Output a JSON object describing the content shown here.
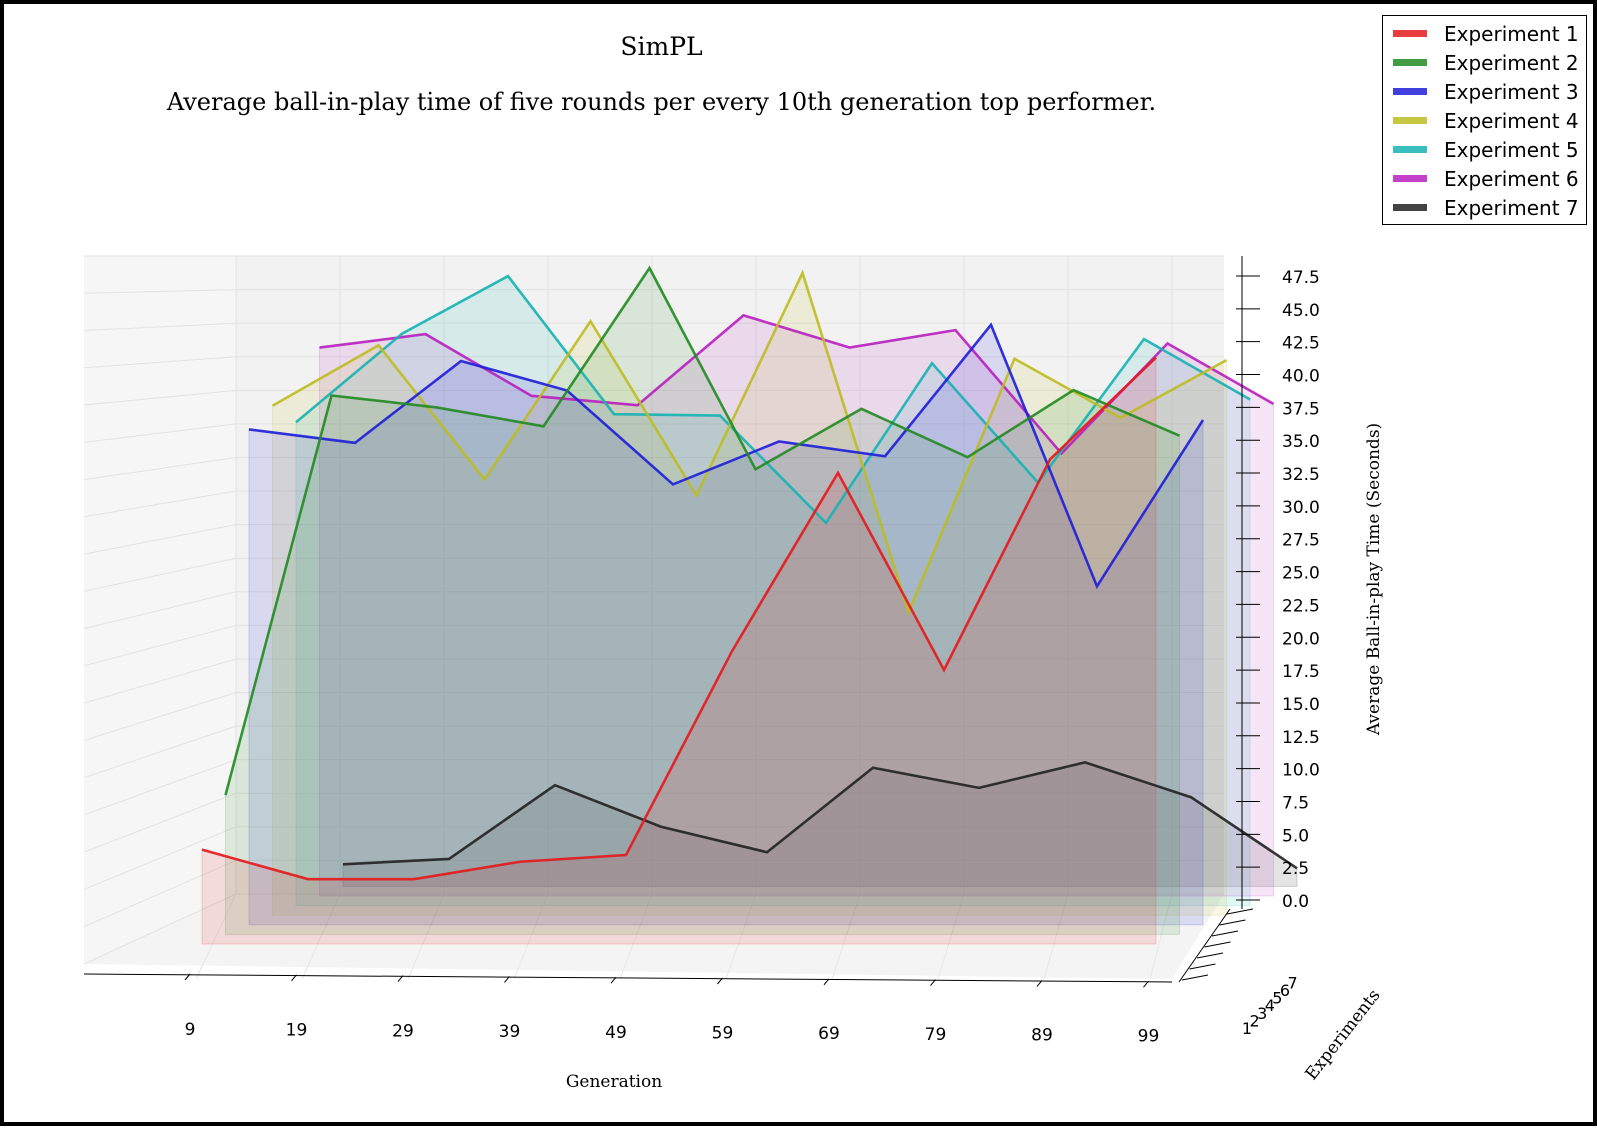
{
  "chart_data": {
    "type": "line",
    "projection": "3d",
    "title": "SimPL",
    "subtitle": "Average ball-in-play time of five rounds per every 10th generation top performer.",
    "xlabel": "Generation",
    "ylabel": "Average Ball-in-play Time (Seconds)",
    "zlabel": "Experiments",
    "x": [
      9,
      19,
      29,
      39,
      49,
      59,
      69,
      79,
      89,
      99
    ],
    "x_tick_labels": [
      "9",
      "19",
      "29",
      "39",
      "49",
      "59",
      "69",
      "79",
      "89",
      "99"
    ],
    "depth_tick_labels": [
      "1",
      "2",
      "3",
      "4",
      "5",
      "6",
      "7"
    ],
    "y_tick_labels": [
      "0.0",
      "2.5",
      "5.0",
      "7.5",
      "10.0",
      "12.5",
      "15.0",
      "17.5",
      "20.0",
      "22.5",
      "25.0",
      "27.5",
      "30.0",
      "32.5",
      "35.0",
      "37.5",
      "40.0",
      "42.5",
      "45.0",
      "47.5"
    ],
    "ylim": [
      0,
      47.5
    ],
    "grid": true,
    "legend_position": "top-right",
    "series": [
      {
        "name": "Experiment 1",
        "color": "#e41a1c",
        "values": [
          4.2,
          2.0,
          2.0,
          3.3,
          3.8,
          19.0,
          32.3,
          17.6,
          33.3,
          40.9
        ]
      },
      {
        "name": "Experiment 2",
        "color": "#228b22",
        "values": [
          8.0,
          37.8,
          36.9,
          35.5,
          47.3,
          32.3,
          36.8,
          33.2,
          38.2,
          34.8
        ]
      },
      {
        "name": "Experiment 3",
        "color": "#1f1fd8",
        "values": [
          35.0,
          34.0,
          40.1,
          37.9,
          30.9,
          34.1,
          33.0,
          42.8,
          23.3,
          35.7
        ]
      },
      {
        "name": "Experiment 4",
        "color": "#bcbd22",
        "values": [
          36.5,
          41.0,
          31.0,
          42.8,
          29.8,
          46.4,
          21.1,
          40.0,
          35.6,
          39.9
        ]
      },
      {
        "name": "Experiment 5",
        "color": "#17b3b3",
        "values": [
          35.0,
          41.6,
          45.9,
          35.6,
          35.5,
          27.5,
          39.4,
          30.5,
          41.2,
          36.7
        ]
      },
      {
        "name": "Experiment 6",
        "color": "#b91fc0",
        "values": [
          40.3,
          41.3,
          36.7,
          36.0,
          42.7,
          40.3,
          41.6,
          32.4,
          40.6,
          36.1
        ]
      },
      {
        "name": "Experiment 7",
        "color": "#222222",
        "values": [
          1.5,
          1.9,
          7.4,
          4.3,
          2.4,
          8.7,
          7.2,
          9.1,
          6.5,
          1.2
        ]
      }
    ]
  }
}
